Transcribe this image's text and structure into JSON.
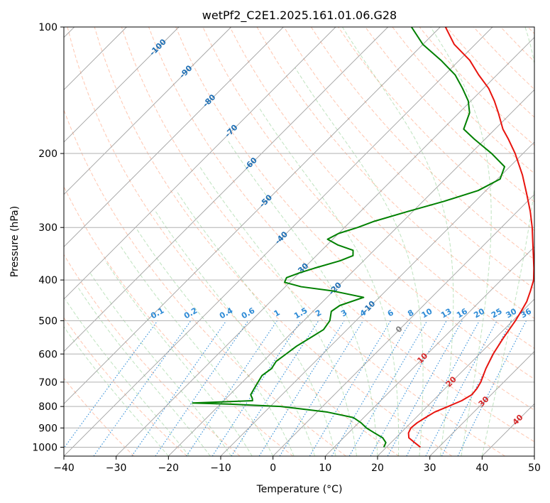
{
  "chart_data": {
    "type": "line",
    "title": "wetPf2_C2E1.2025.161.01.06.G28",
    "xlabel": "Temperature (°C)",
    "ylabel": "Pressure (hPa)",
    "xlim": [
      -40,
      50
    ],
    "ylim": [
      1050,
      100
    ],
    "y_scale": "log",
    "x_ticks": [
      "−40",
      "−30",
      "−20",
      "−10",
      "0",
      "10",
      "20",
      "30",
      "40",
      "50"
    ],
    "x_tick_values": [
      -40,
      -30,
      -20,
      -10,
      0,
      10,
      20,
      30,
      40,
      50
    ],
    "y_ticks": [
      "100",
      "200",
      "300",
      "400",
      "500",
      "600",
      "700",
      "800",
      "900",
      "1000"
    ],
    "y_tick_values": [
      100,
      200,
      300,
      400,
      500,
      600,
      700,
      800,
      900,
      1000
    ],
    "grid": true,
    "series": [
      {
        "role": "temperature",
        "color": "#e8140e",
        "points": [
          [
            1000,
            26.5
          ],
          [
            975,
            24.5
          ],
          [
            950,
            22.5
          ],
          [
            925,
            21.5
          ],
          [
            900,
            21.0
          ],
          [
            875,
            21.2
          ],
          [
            850,
            21.8
          ],
          [
            825,
            22.5
          ],
          [
            800,
            24.0
          ],
          [
            775,
            25.5
          ],
          [
            750,
            26.3
          ],
          [
            725,
            26.1
          ],
          [
            700,
            25.6
          ],
          [
            650,
            24.0
          ],
          [
            600,
            22.6
          ],
          [
            550,
            21.5
          ],
          [
            500,
            20.5
          ],
          [
            475,
            19.8
          ],
          [
            450,
            19.0
          ],
          [
            425,
            17.7
          ],
          [
            400,
            16.2
          ],
          [
            375,
            14.0
          ],
          [
            350,
            11.5
          ],
          [
            325,
            8.8
          ],
          [
            300,
            5.9
          ],
          [
            275,
            2.5
          ],
          [
            250,
            -1.5
          ],
          [
            225,
            -6.0
          ],
          [
            200,
            -11.5
          ],
          [
            185,
            -15.5
          ],
          [
            175,
            -18.5
          ],
          [
            160,
            -22.5
          ],
          [
            150,
            -25.5
          ],
          [
            140,
            -29.0
          ],
          [
            130,
            -33.5
          ],
          [
            120,
            -38.0
          ],
          [
            110,
            -44.0
          ],
          [
            100,
            -49.0
          ]
        ]
      },
      {
        "role": "dewpoint",
        "color": "#008000",
        "points": [
          [
            1000,
            19.5
          ],
          [
            975,
            19.0
          ],
          [
            950,
            17.5
          ],
          [
            925,
            15.0
          ],
          [
            900,
            12.5
          ],
          [
            875,
            10.5
          ],
          [
            850,
            8.0
          ],
          [
            825,
            2.0
          ],
          [
            800,
            -8.0
          ],
          [
            790,
            -18.0
          ],
          [
            785,
            -25.5
          ],
          [
            775,
            -14.5
          ],
          [
            765,
            -15.0
          ],
          [
            750,
            -16.0
          ],
          [
            725,
            -16.5
          ],
          [
            700,
            -17.0
          ],
          [
            675,
            -17.5
          ],
          [
            650,
            -17.0
          ],
          [
            625,
            -17.5
          ],
          [
            600,
            -17.0
          ],
          [
            575,
            -16.5
          ],
          [
            550,
            -15.5
          ],
          [
            525,
            -14.5
          ],
          [
            500,
            -15.0
          ],
          [
            475,
            -16.5
          ],
          [
            460,
            -16.0
          ],
          [
            440,
            -13.0
          ],
          [
            425,
            -20.0
          ],
          [
            415,
            -27.0
          ],
          [
            405,
            -31.0
          ],
          [
            395,
            -31.5
          ],
          [
            385,
            -30.0
          ],
          [
            375,
            -28.0
          ],
          [
            360,
            -24.5
          ],
          [
            350,
            -23.0
          ],
          [
            340,
            -24.0
          ],
          [
            330,
            -28.0
          ],
          [
            320,
            -31.0
          ],
          [
            310,
            -30.0
          ],
          [
            300,
            -27.5
          ],
          [
            290,
            -25.5
          ],
          [
            275,
            -21.0
          ],
          [
            260,
            -16.0
          ],
          [
            245,
            -11.5
          ],
          [
            230,
            -9.5
          ],
          [
            215,
            -11.0
          ],
          [
            200,
            -16.0
          ],
          [
            185,
            -22.0
          ],
          [
            175,
            -26.0
          ],
          [
            160,
            -28.0
          ],
          [
            150,
            -30.5
          ],
          [
            140,
            -34.0
          ],
          [
            130,
            -38.0
          ],
          [
            120,
            -43.5
          ],
          [
            110,
            -50.0
          ],
          [
            100,
            -55.5
          ]
        ]
      }
    ],
    "dry_adiabats_colour": "#ff8050",
    "moist_adiabats_colour": "#70c070",
    "isotherm_colour": "#909090",
    "mixing_ratio_colour": "#2e8bd6",
    "isotherm_labels": [
      "-100",
      "-90",
      "-80",
      "-70",
      "-60",
      "-50",
      "-40",
      "-30",
      "-20",
      "-10"
    ],
    "isotherm_label_colour": "#1f6fb4",
    "mixing_ratio_labels": [
      "0.1",
      "0.2",
      "0.4",
      "0.6",
      "1",
      "1.5",
      "2",
      "3",
      "4",
      "6",
      "8",
      "10",
      "13",
      "16",
      "20",
      "25",
      "30",
      "36"
    ],
    "positive_isotherm_labels": [
      "0",
      "10",
      "20",
      "30",
      "40"
    ],
    "positive_isotherm_colours": [
      "#808080",
      "#d62728",
      "#d62728",
      "#d62728",
      "#d62728"
    ]
  }
}
